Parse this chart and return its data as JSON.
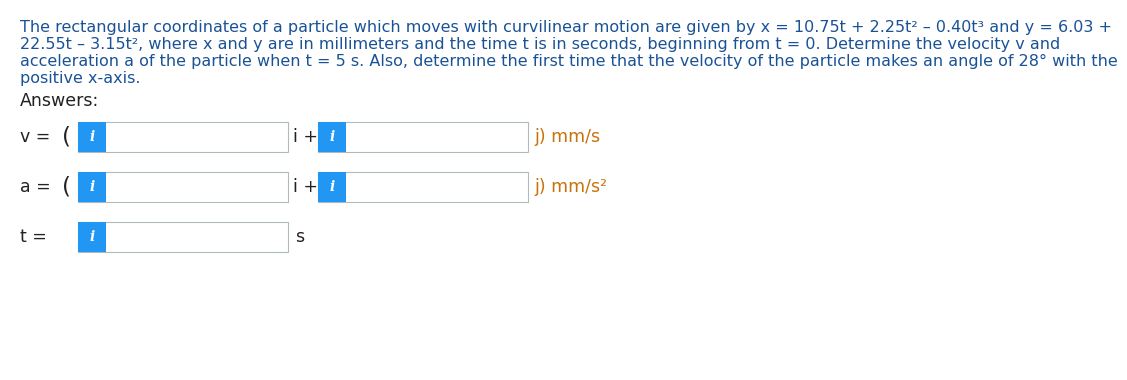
{
  "problem_lines": [
    "The rectangular coordinates of a particle which moves with curvilinear motion are given by x = 10.75t + 2.25t² – 0.40t³ and y = 6.03 +",
    "22.55t – 3.15t², where x and y are in millimeters and the time t is in seconds, beginning from t = 0. Determine the velocity v and",
    "acceleration a of the particle when t = 5 s. Also, determine the first time that the velocity of the particle makes an angle of 28° with the",
    "positive x-axis."
  ],
  "answers_label": "Answers:",
  "text_blue": "#1a5296",
  "text_black": "#222222",
  "text_orange": "#c8720a",
  "btn_blue": "#2196f3",
  "btn_blue_dark": "#1976d2",
  "box_border": "#b0b8c0",
  "box_fill": "#ffffff",
  "bg": "#ffffff",
  "prob_fs": 11.5,
  "ans_fs": 12.5,
  "lbl_fs": 12.5,
  "unit_fs": 12.5,
  "btn_i_fs": 10
}
